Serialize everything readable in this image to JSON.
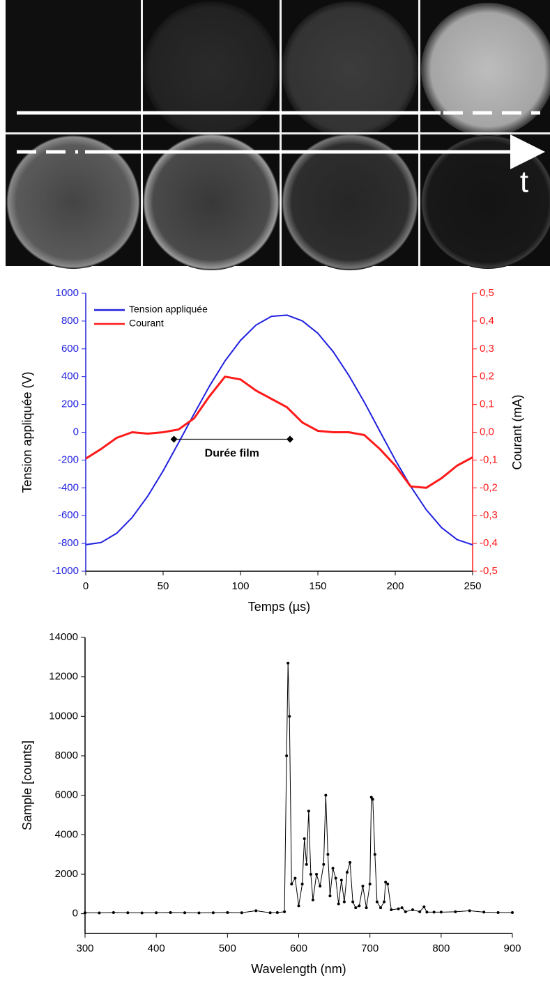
{
  "photo_strip": {
    "time_label": "t"
  },
  "chart_data": [
    {
      "type": "line",
      "xlabel": "Temps (µs)",
      "ylabel": "Tension appliquée (V)",
      "y2label": "Courant (mA)",
      "xlim": [
        0,
        250
      ],
      "xticks": [
        0,
        50,
        100,
        150,
        200,
        250
      ],
      "ylim": [
        -1000,
        1000
      ],
      "yticks": [
        -1000,
        -800,
        -600,
        -400,
        -200,
        0,
        200,
        400,
        600,
        800,
        1000
      ],
      "y2lim": [
        -0.5,
        0.5
      ],
      "y2ticks": [
        {
          "value": -0.5,
          "label": "-0,5"
        },
        {
          "value": -0.4,
          "label": "-0,4"
        },
        {
          "value": -0.3,
          "label": "-0,3"
        },
        {
          "value": -0.2,
          "label": "-0,2"
        },
        {
          "value": -0.1,
          "label": "-0,1"
        },
        {
          "value": 0,
          "label": "0,0"
        },
        {
          "value": 0.1,
          "label": "0,1"
        },
        {
          "value": 0.2,
          "label": "0,2"
        },
        {
          "value": 0.3,
          "label": "0,3"
        },
        {
          "value": 0.4,
          "label": "0,4"
        },
        {
          "value": 0.5,
          "label": "0,5"
        }
      ],
      "legend": "upper left",
      "x": [
        0,
        10,
        20,
        30,
        40,
        50,
        60,
        70,
        80,
        90,
        100,
        110,
        120,
        130,
        140,
        150,
        160,
        170,
        180,
        190,
        200,
        210,
        220,
        230,
        240,
        250
      ],
      "series": [
        {
          "name": "Tension appliquée",
          "color": "#1f1fe0",
          "values": [
            -809,
            -793,
            -727,
            -613,
            -461,
            -278,
            -75,
            132,
            333,
            513,
            661,
            771,
            834,
            843,
            801,
            712,
            578,
            409,
            217,
            8,
            -199,
            -390,
            -557,
            -687,
            -773,
            -810
          ]
        },
        {
          "name": "Courant",
          "color": "#ff1a1a",
          "axis": "y2",
          "values": [
            -0.095,
            -0.06,
            -0.02,
            0.0,
            -0.005,
            0.0,
            0.01,
            0.05,
            0.13,
            0.2,
            0.19,
            0.15,
            0.12,
            0.09,
            0.035,
            0.005,
            0.0,
            0.0,
            -0.01,
            -0.06,
            -0.12,
            -0.195,
            -0.2,
            -0.165,
            -0.12,
            -0.09
          ]
        }
      ],
      "annotation": {
        "text": "Durée film",
        "x": [
          57,
          132
        ],
        "y": -50
      }
    },
    {
      "type": "line",
      "markers": true,
      "xlabel": "Wavelength (nm)",
      "ylabel": "Sample [counts]",
      "xlim": [
        300,
        900
      ],
      "xticks": [
        300,
        400,
        500,
        600,
        700,
        800,
        900
      ],
      "ylim": [
        -1000,
        14000
      ],
      "yticks": [
        0,
        2000,
        4000,
        6000,
        8000,
        10000,
        12000,
        14000
      ],
      "color": "#000000",
      "x": [
        300,
        320,
        340,
        360,
        380,
        400,
        420,
        440,
        460,
        480,
        500,
        520,
        540,
        560,
        570,
        580,
        583,
        585,
        587,
        590,
        595,
        600,
        605,
        608,
        611,
        614,
        617,
        620,
        625,
        630,
        635,
        638,
        641,
        644,
        648,
        652,
        656,
        660,
        664,
        668,
        672,
        676,
        680,
        685,
        690,
        695,
        700,
        702,
        704,
        707,
        710,
        715,
        720,
        722,
        725,
        730,
        740,
        745,
        750,
        760,
        770,
        776,
        780,
        790,
        800,
        820,
        840,
        860,
        880,
        900
      ],
      "values": [
        50,
        40,
        60,
        50,
        40,
        50,
        60,
        50,
        40,
        50,
        60,
        50,
        150,
        50,
        60,
        100,
        8000,
        12700,
        10000,
        1500,
        1800,
        400,
        1500,
        3800,
        2500,
        5200,
        2000,
        700,
        2000,
        1400,
        2500,
        6000,
        3000,
        900,
        2300,
        1800,
        500,
        1700,
        600,
        2100,
        2600,
        600,
        300,
        400,
        1400,
        300,
        1500,
        5900,
        5800,
        3000,
        600,
        300,
        600,
        1600,
        1500,
        200,
        250,
        300,
        100,
        200,
        100,
        350,
        80,
        80,
        80,
        100,
        150,
        80,
        60,
        60
      ]
    }
  ]
}
